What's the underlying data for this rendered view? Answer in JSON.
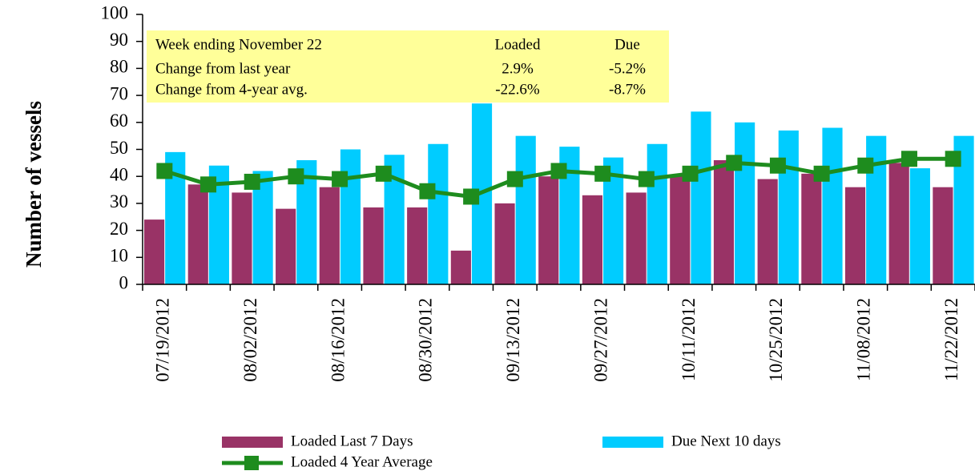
{
  "chart_data": {
    "type": "combo",
    "y_label": "Number of vessels",
    "categories": [
      "07/19/2012",
      null,
      "08/02/2012",
      null,
      "08/16/2012",
      null,
      "08/30/2012",
      null,
      "09/13/2012",
      null,
      "09/27/2012",
      null,
      "10/11/2012",
      null,
      "10/25/2012",
      null,
      "11/08/2012",
      null,
      "11/22/2012"
    ],
    "series": [
      {
        "name": "Loaded Last 7 Days",
        "type": "bar",
        "color": "#993366",
        "values": [
          24,
          37,
          34,
          28,
          36,
          28.5,
          28.5,
          12.5,
          30,
          40,
          33,
          34,
          40,
          46,
          39,
          41,
          36,
          45,
          36
        ]
      },
      {
        "name": "Due Next 10 days",
        "type": "bar",
        "color": "#00ccff",
        "values": [
          49,
          44,
          42,
          46,
          50,
          48,
          52,
          67,
          55,
          51,
          47,
          52,
          64,
          60,
          57,
          58,
          55,
          43,
          55
        ]
      },
      {
        "name": "Loaded 4 Year Average",
        "type": "line",
        "color": "#1e8c1e",
        "values": [
          42,
          37,
          38,
          40,
          39,
          41,
          34.5,
          32.5,
          39,
          42,
          41,
          39,
          41,
          45,
          44,
          41,
          44,
          46.5,
          46.5
        ]
      }
    ],
    "ylim": [
      0,
      100
    ],
    "yticks": [
      0,
      10,
      20,
      30,
      40,
      50,
      60,
      70,
      80,
      90,
      100
    ],
    "grid": false,
    "table": {
      "header": [
        "Week ending November 22",
        "Loaded",
        "Due"
      ],
      "rows": [
        [
          "Change from last year",
          "2.9%",
          "-5.2%"
        ],
        [
          "Change from 4-year avg.",
          "-22.6%",
          "-8.7%"
        ]
      ]
    }
  }
}
